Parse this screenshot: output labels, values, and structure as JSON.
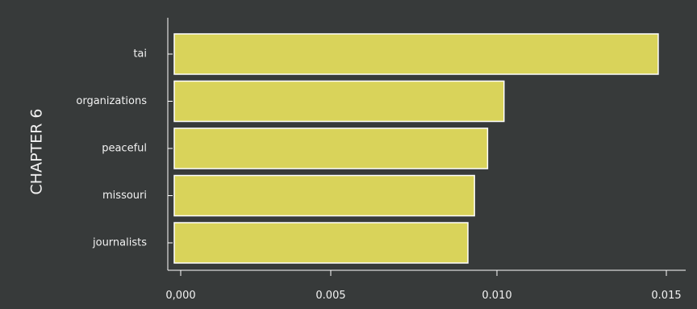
{
  "chart_data": {
    "type": "bar",
    "orientation": "horizontal",
    "ylabel": "CHAPTER 6",
    "xlabel": "",
    "title": "",
    "categories": [
      "tai",
      "organizations",
      "peaceful",
      "missouri",
      "journalists"
    ],
    "values": [
      0.0147,
      0.01,
      0.0095,
      0.0091,
      0.0089
    ],
    "xlim": [
      0,
      0.0155
    ],
    "xticks": [
      0.0,
      0.005,
      0.01,
      0.015
    ],
    "xtick_labels": [
      "0,000",
      "0.005",
      "0.010",
      "0.015"
    ],
    "grid": false,
    "legend": "none",
    "colors": {
      "background": "#373a3a",
      "bar_fill": "#d9d35a",
      "bar_edge": "#ffffff",
      "text": "#f2f2f2",
      "axis": "#ffffff"
    }
  }
}
